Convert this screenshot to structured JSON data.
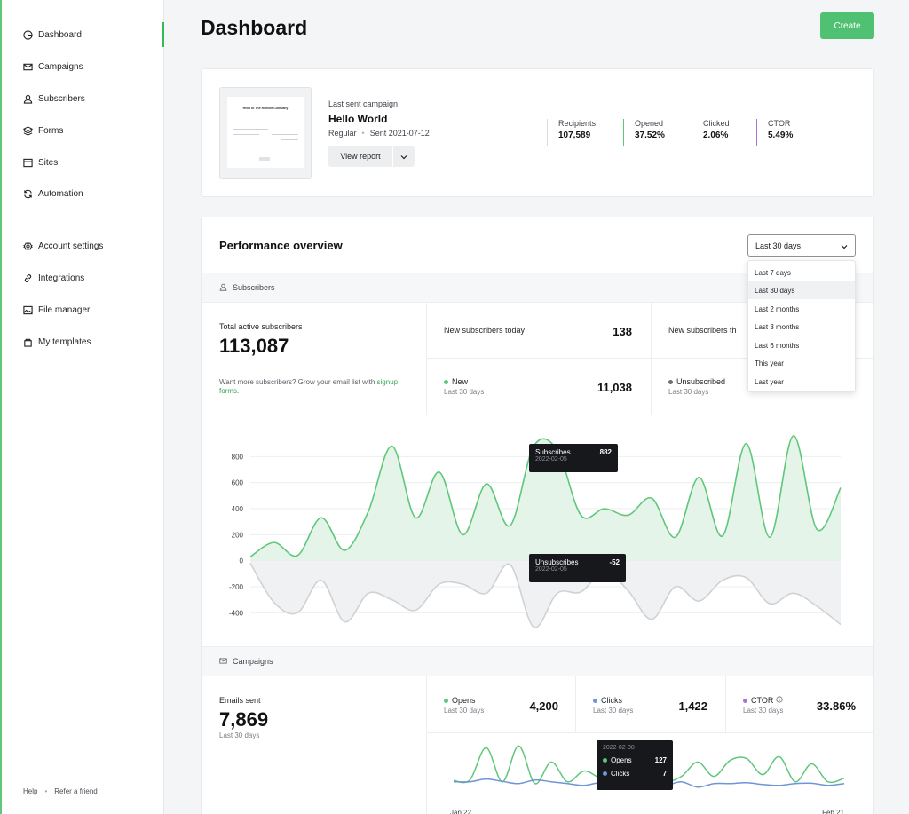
{
  "sidebar": {
    "items": [
      {
        "label": "Dashboard",
        "icon": "dashboard-icon"
      },
      {
        "label": "Campaigns",
        "icon": "mail-icon"
      },
      {
        "label": "Subscribers",
        "icon": "user-icon"
      },
      {
        "label": "Forms",
        "icon": "layers-icon"
      },
      {
        "label": "Sites",
        "icon": "browser-icon"
      },
      {
        "label": "Automation",
        "icon": "refresh-icon"
      },
      {
        "label": "Account settings",
        "icon": "gear-icon"
      },
      {
        "label": "Integrations",
        "icon": "link-icon"
      },
      {
        "label": "File manager",
        "icon": "image-icon"
      },
      {
        "label": "My templates",
        "icon": "template-icon"
      }
    ],
    "footer": {
      "help": "Help",
      "separator": "•",
      "refer": "Refer a friend"
    }
  },
  "header": {
    "title": "Dashboard",
    "create_label": "Create"
  },
  "last_campaign": {
    "label": "Last sent campaign",
    "title": "Hello World",
    "type": "Regular",
    "separator": "•",
    "sent": "Sent 2021-07-12",
    "view_report": "View report",
    "thumbnail_heading": "Hello to The Remote Company",
    "stats": [
      {
        "label": "Recipients",
        "value": "107,589",
        "color": "#d9dcdf"
      },
      {
        "label": "Opened",
        "value": "37.52%",
        "color": "#5ec77a"
      },
      {
        "label": "Clicked",
        "value": "2.06%",
        "color": "#6f94d8"
      },
      {
        "label": "CTOR",
        "value": "5.49%",
        "color": "#a774d6"
      }
    ]
  },
  "performance": {
    "title": "Performance overview",
    "period_selected": "Last 30 days",
    "period_options": [
      "Last 7 days",
      "Last 30 days",
      "Last 2 months",
      "Last 3 months",
      "Last 6 months",
      "This year",
      "Last year"
    ],
    "subscribers_section": "Subscribers",
    "total_label": "Total active subscribers",
    "total_value": "113,087",
    "signup_prefix": "Want more subscribers? Grow your email list with ",
    "signup_link": "signup forms",
    "signup_suffix": ".",
    "new_today_label": "New subscribers today",
    "new_today_value": "138",
    "new_truncated_label": "New subscribers th",
    "new_label": "New",
    "new_sub": "Last 30 days",
    "new_value": "11,038",
    "unsub_label": "Unsubscribed",
    "unsub_sub": "Last 30 days",
    "campaigns_section": "Campaigns",
    "emails_sent_label": "Emails sent",
    "emails_sent_value": "7,869",
    "emails_sent_sub": "Last 30 days",
    "opens_label": "Opens",
    "opens_sub": "Last 30 days",
    "opens_value": "4,200",
    "clicks_label": "Clicks",
    "clicks_sub": "Last 30 days",
    "clicks_value": "1,422",
    "ctor_label": "CTOR",
    "ctor_sub": "Last 30 days",
    "ctor_value": "33.86%",
    "colors": {
      "green": "#5ec77a",
      "blue": "#6f94d8",
      "purple": "#a774d6",
      "gray": "#6b7075"
    }
  },
  "chart_data": [
    {
      "type": "area",
      "ylim": [
        -500,
        1000
      ],
      "yticks": [
        800,
        600,
        400,
        200,
        0,
        -200,
        -400
      ],
      "series": [
        {
          "name": "Subscribes",
          "values": [
            30,
            140,
            40,
            330,
            80,
            380,
            880,
            330,
            680,
            200,
            590,
            270,
            880,
            850,
            350,
            400,
            350,
            480,
            180,
            640,
            190,
            900,
            180,
            960,
            240,
            560
          ]
        },
        {
          "name": "Unsubscribes",
          "values": [
            -20,
            -320,
            -400,
            -150,
            -470,
            -250,
            -300,
            -380,
            -180,
            -180,
            -250,
            -30,
            -510,
            -250,
            -240,
            -80,
            -230,
            -450,
            -200,
            -310,
            -150,
            -130,
            -330,
            -250,
            -350,
            -490
          ]
        }
      ],
      "tooltips": [
        {
          "series": "Subscribes",
          "label": "Subscribes",
          "value": "882",
          "date": "2022-02-05"
        },
        {
          "series": "Unsubscribes",
          "label": "Unsubscribes",
          "value": "-52",
          "date": "2022-02-05"
        }
      ]
    },
    {
      "type": "line",
      "x_start": "Jan 22",
      "x_end": "Feb 21",
      "series": [
        {
          "name": "Opens",
          "values": [
            127,
            130,
            310,
            120,
            320,
            110,
            230,
            120,
            180,
            140,
            110,
            127,
            170,
            120,
            150,
            230,
            150,
            240,
            250,
            160,
            260,
            120,
            220,
            120,
            140
          ]
        },
        {
          "name": "Clicks",
          "values": [
            120,
            120,
            135,
            122,
            110,
            130,
            120,
            110,
            100,
            115,
            108,
            112,
            118,
            100,
            120,
            90,
            110,
            110,
            115,
            105,
            100,
            110,
            112,
            100,
            110
          ]
        }
      ],
      "tooltip": {
        "date": "2022-02-08",
        "rows": [
          {
            "label": "Opens",
            "value": "127"
          },
          {
            "label": "Clicks",
            "value": "7"
          }
        ]
      }
    }
  ]
}
